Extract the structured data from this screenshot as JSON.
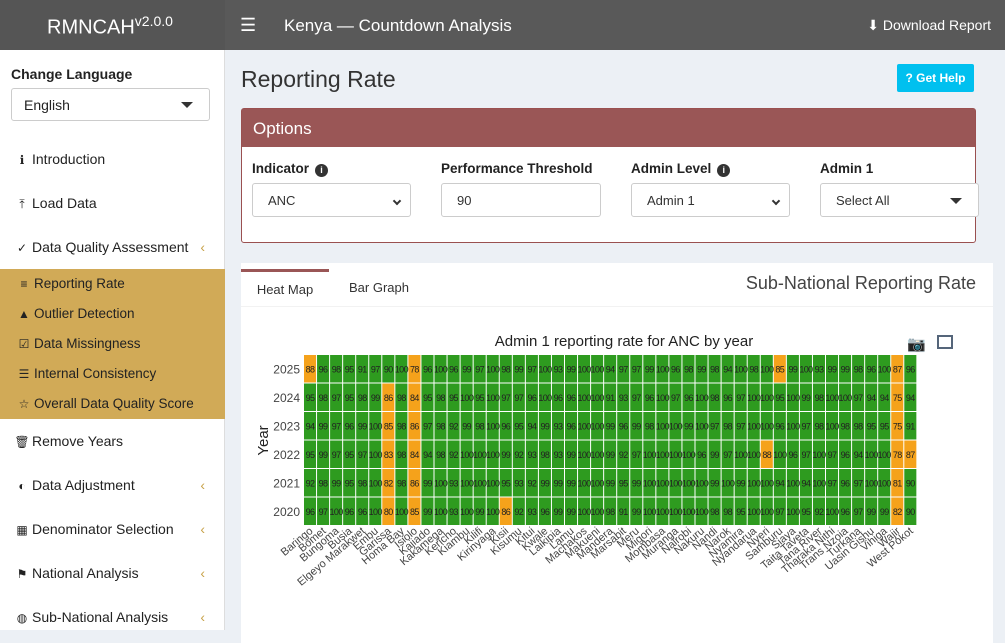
{
  "app": {
    "brand": "RMNCAH",
    "version": "v2.0.0",
    "title": "Kenya — Countdown Analysis",
    "download": "Download Report"
  },
  "sidebar": {
    "lang_heading": "Change Language",
    "language": "English",
    "items": [
      {
        "label": "Introduction",
        "icon": "info-circle-icon"
      },
      {
        "label": "Load Data",
        "icon": "upload-icon"
      },
      {
        "label": "Data Quality Assessment",
        "icon": "check-circle-icon"
      },
      {
        "label": "Remove Years",
        "icon": "trash-icon"
      },
      {
        "label": "Data Adjustment",
        "icon": "adjust-icon"
      },
      {
        "label": "Denominator Selection",
        "icon": "calculator-icon"
      },
      {
        "label": "National Analysis",
        "icon": "flag-icon"
      },
      {
        "label": "Sub-National Analysis",
        "icon": "globe-icon"
      }
    ],
    "sub_items": [
      {
        "label": "Reporting Rate",
        "icon": "chart-bar-icon"
      },
      {
        "label": "Outlier Detection",
        "icon": "warning-icon"
      },
      {
        "label": "Data Missingness",
        "icon": "check-square-icon"
      },
      {
        "label": "Internal Consistency",
        "icon": "list-check-icon"
      },
      {
        "label": "Overall Data Quality Score",
        "icon": "star-icon"
      }
    ]
  },
  "main": {
    "page_title": "Reporting Rate",
    "help_label": "Get Help",
    "options_title": "Options",
    "fields": {
      "indicator_label": "Indicator",
      "indicator_value": "ANC",
      "threshold_label": "Performance Threshold",
      "threshold_value": "90",
      "admin_level_label": "Admin Level",
      "admin_level_value": "Admin 1",
      "admin1_label": "Admin 1",
      "admin1_value": "Select All"
    },
    "tabs": [
      "Heat Map",
      "Bar Graph"
    ],
    "panel_title": "Sub-National Reporting Rate"
  },
  "colors": {
    "high": "#2e9b1f",
    "low": "#f5a21b",
    "accent": "#9a5656",
    "sub_bg": "#d1aa57"
  },
  "chart_data": {
    "type": "heatmap",
    "title": "Admin 1 reporting rate for ANC by year",
    "ylabel": "Year",
    "threshold": 90,
    "years": [
      "2025",
      "2024",
      "2023",
      "2022",
      "2021",
      "2020"
    ],
    "categories": [
      "Baringo",
      "Bomet",
      "Bungoma",
      "Busia",
      "Elgeyo Marakwet",
      "Embu",
      "Garissa",
      "Homa Bay",
      "Isiolo",
      "Kajiado",
      "Kakamega",
      "Kericho",
      "Kiambu",
      "Kilifi",
      "Kirinyaga",
      "Kisii",
      "Kisumu",
      "Kitui",
      "Kwale",
      "Laikipia",
      "Lamu",
      "Machakos",
      "Makueni",
      "Mandera",
      "Marsabit",
      "Meru",
      "Migori",
      "Mombasa",
      "Muranga",
      "Nairobi",
      "Nakuru",
      "Nandi",
      "Narok",
      "Nyamira",
      "Nyandarua",
      "Nyeri",
      "Samburu",
      "Siaya",
      "Taita Taveta",
      "Tana River",
      "Tharaka Nithi",
      "Trans Nzoia",
      "Turkana",
      "Uasin Gishu",
      "Vihiga",
      "Wajir",
      "West Pokot"
    ],
    "values": [
      [
        "88",
        "96",
        "98",
        "95",
        "91",
        "97",
        "90",
        "100",
        "78",
        "96",
        "100",
        "96",
        "99",
        "97",
        "100",
        "98",
        "99",
        "97",
        "100",
        "93",
        "99",
        "100",
        "100",
        "94",
        "97",
        "97",
        "99",
        "100",
        "96",
        "98",
        "99",
        "98",
        "94",
        "100",
        "98",
        "100",
        "85",
        "99",
        "100",
        "93",
        "99",
        "99",
        "98",
        "96",
        "100",
        "87",
        "96"
      ],
      [
        "95",
        "98",
        "97",
        "95",
        "98",
        "99",
        "86",
        "98",
        "84",
        "95",
        "98",
        "95",
        "100",
        "95",
        "100",
        "97",
        "97",
        "96",
        "100",
        "96",
        "96",
        "100",
        "100",
        "91",
        "93",
        "97",
        "96",
        "100",
        "97",
        "96",
        "100",
        "98",
        "96",
        "97",
        "100",
        "100",
        "95",
        "100",
        "99",
        "98",
        "100",
        "100",
        "97",
        "94",
        "94",
        "75",
        "94"
      ],
      [
        "94",
        "99",
        "97",
        "96",
        "99",
        "100",
        "85",
        "98",
        "86",
        "97",
        "98",
        "92",
        "99",
        "98",
        "100",
        "96",
        "95",
        "94",
        "99",
        "93",
        "96",
        "100",
        "100",
        "99",
        "96",
        "99",
        "98",
        "100",
        "100",
        "99",
        "100",
        "97",
        "98",
        "97",
        "100",
        "100",
        "96",
        "100",
        "97",
        "98",
        "100",
        "98",
        "98",
        "95",
        "95",
        "75",
        "91"
      ],
      [
        "95",
        "99",
        "97",
        "95",
        "97",
        "100",
        "83",
        "98",
        "84",
        "94",
        "98",
        "92",
        "100",
        "100",
        "100",
        "99",
        "92",
        "93",
        "98",
        "93",
        "99",
        "100",
        "100",
        "99",
        "92",
        "97",
        "100",
        "100",
        "100",
        "100",
        "96",
        "99",
        "97",
        "100",
        "100",
        "88",
        "100",
        "96",
        "97",
        "100",
        "97",
        "96",
        "94",
        "100",
        "100",
        "78",
        "87"
      ],
      [
        "92",
        "98",
        "99",
        "95",
        "98",
        "100",
        "82",
        "98",
        "86",
        "99",
        "100",
        "93",
        "100",
        "100",
        "100",
        "95",
        "93",
        "92",
        "99",
        "99",
        "99",
        "100",
        "100",
        "99",
        "95",
        "99",
        "100",
        "100",
        "100",
        "100",
        "100",
        "99",
        "100",
        "99",
        "100",
        "100",
        "94",
        "100",
        "94",
        "100",
        "97",
        "96",
        "97",
        "100",
        "100",
        "81",
        "90"
      ],
      [
        "96",
        "97",
        "100",
        "96",
        "96",
        "100",
        "80",
        "100",
        "85",
        "99",
        "100",
        "93",
        "100",
        "99",
        "100",
        "86",
        "92",
        "93",
        "96",
        "99",
        "99",
        "100",
        "100",
        "98",
        "91",
        "99",
        "100",
        "100",
        "100",
        "100",
        "100",
        "98",
        "98",
        "95",
        "100",
        "100",
        "97",
        "100",
        "95",
        "92",
        "100",
        "96",
        "97",
        "99",
        "99",
        "82",
        "90"
      ]
    ]
  }
}
